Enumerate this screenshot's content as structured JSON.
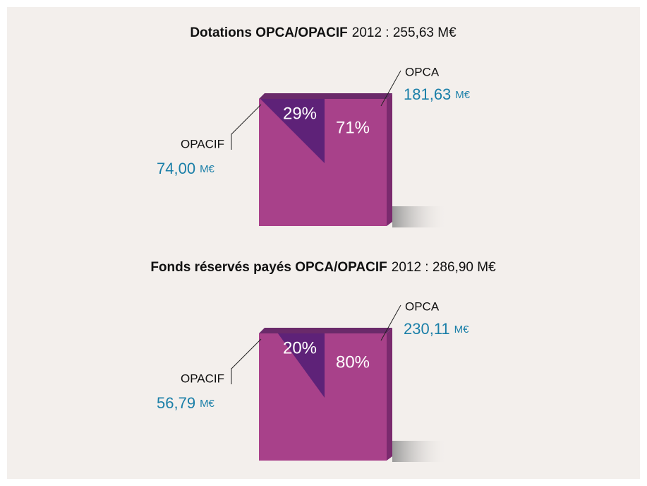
{
  "chart_data": [
    {
      "type": "pie",
      "title": "Dotations OPCA/OPACIF",
      "subtitle": "2012 : 255,63 M€",
      "categories": [
        "OPACIF",
        "OPCA"
      ],
      "values": [
        29,
        71
      ],
      "value_labels": [
        "29%",
        "71%"
      ],
      "amounts": [
        74.0,
        181.63
      ],
      "amount_labels": [
        "74,00",
        "181,63"
      ],
      "amount_unit": "M€",
      "colors": [
        "#5e2278",
        "#a8418a"
      ]
    },
    {
      "type": "pie",
      "title": "Fonds réservés payés OPCA/OPACIF",
      "subtitle": "2012 : 286,90 M€",
      "categories": [
        "OPACIF",
        "OPCA"
      ],
      "values": [
        20,
        80
      ],
      "value_labels": [
        "20%",
        "80%"
      ],
      "amounts": [
        56.79,
        230.11
      ],
      "amount_labels": [
        "56,79",
        "230,11"
      ],
      "amount_unit": "M€",
      "colors": [
        "#5e2278",
        "#a8418a"
      ]
    }
  ]
}
